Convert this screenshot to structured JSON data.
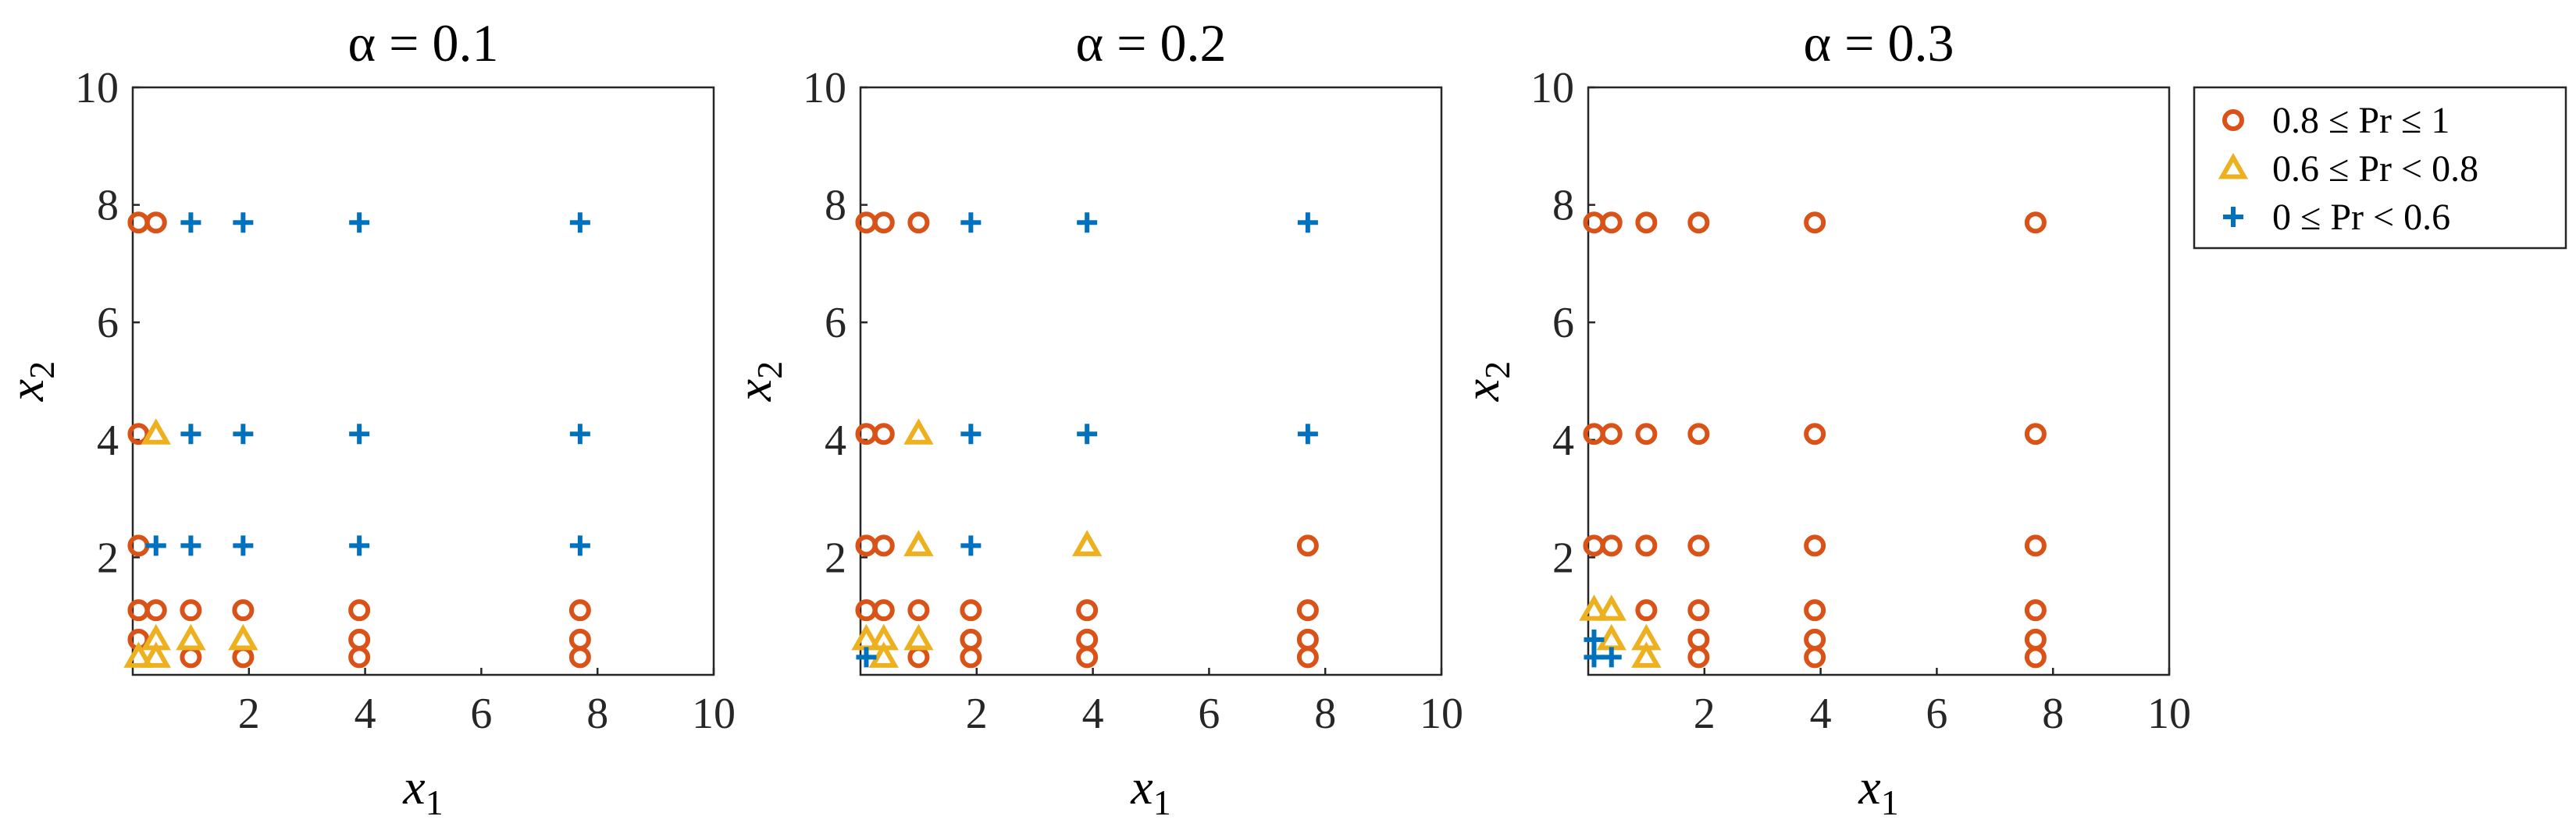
{
  "colors": {
    "high": "#D95319",
    "mid": "#EDB120",
    "low": "#0072BD",
    "axis": "#262626"
  },
  "legend": [
    {
      "key": "high",
      "marker": "circle",
      "label": "0.8 ≤ Pr ≤ 1"
    },
    {
      "key": "mid",
      "marker": "triangle",
      "label": "0.6 ≤ Pr < 0.8"
    },
    {
      "key": "low",
      "marker": "plus",
      "label": "0 ≤ Pr < 0.6"
    }
  ],
  "chart_data": [
    {
      "type": "scatter",
      "title": "α = 0.1",
      "xlabel": "x1",
      "ylabel": "x2",
      "xlim": [
        0,
        10
      ],
      "ylim": [
        0,
        10
      ],
      "xticks": [
        "2",
        "4",
        "6",
        "8",
        "10"
      ],
      "yticks": [
        "2",
        "4",
        "6",
        "8",
        "10"
      ],
      "series": [
        {
          "key": "high",
          "points": [
            [
              0.1,
              7.7
            ],
            [
              0.4,
              7.7
            ],
            [
              0.1,
              4.1
            ],
            [
              0.1,
              2.2
            ],
            [
              0.1,
              1.1
            ],
            [
              0.4,
              1.1
            ],
            [
              1.0,
              1.1
            ],
            [
              1.9,
              1.1
            ],
            [
              3.9,
              1.1
            ],
            [
              7.7,
              1.1
            ],
            [
              0.1,
              0.6
            ],
            [
              1.0,
              0.3
            ],
            [
              1.9,
              0.3
            ],
            [
              3.9,
              0.6
            ],
            [
              3.9,
              0.3
            ],
            [
              7.7,
              0.6
            ],
            [
              7.7,
              0.3
            ]
          ]
        },
        {
          "key": "mid",
          "points": [
            [
              0.4,
              4.1
            ],
            [
              0.1,
              0.3
            ],
            [
              0.4,
              0.6
            ],
            [
              0.4,
              0.3
            ],
            [
              1.0,
              0.6
            ],
            [
              1.9,
              0.6
            ]
          ]
        },
        {
          "key": "low",
          "points": [
            [
              1.0,
              7.7
            ],
            [
              1.9,
              7.7
            ],
            [
              3.9,
              7.7
            ],
            [
              7.7,
              7.7
            ],
            [
              1.0,
              4.1
            ],
            [
              1.9,
              4.1
            ],
            [
              3.9,
              4.1
            ],
            [
              7.7,
              4.1
            ],
            [
              0.4,
              2.2
            ],
            [
              1.0,
              2.2
            ],
            [
              1.9,
              2.2
            ],
            [
              3.9,
              2.2
            ],
            [
              7.7,
              2.2
            ]
          ]
        }
      ]
    },
    {
      "type": "scatter",
      "title": "α = 0.2",
      "xlabel": "x1",
      "ylabel": "x2",
      "xlim": [
        0,
        10
      ],
      "ylim": [
        0,
        10
      ],
      "xticks": [
        "2",
        "4",
        "6",
        "8",
        "10"
      ],
      "yticks": [
        "2",
        "4",
        "6",
        "8",
        "10"
      ],
      "series": [
        {
          "key": "high",
          "points": [
            [
              0.1,
              7.7
            ],
            [
              0.4,
              7.7
            ],
            [
              1.0,
              7.7
            ],
            [
              0.1,
              4.1
            ],
            [
              0.4,
              4.1
            ],
            [
              0.1,
              2.2
            ],
            [
              0.4,
              2.2
            ],
            [
              7.7,
              2.2
            ],
            [
              0.1,
              1.1
            ],
            [
              0.4,
              1.1
            ],
            [
              1.0,
              1.1
            ],
            [
              1.9,
              1.1
            ],
            [
              3.9,
              1.1
            ],
            [
              7.7,
              1.1
            ],
            [
              1.0,
              0.3
            ],
            [
              1.9,
              0.6
            ],
            [
              1.9,
              0.3
            ],
            [
              3.9,
              0.6
            ],
            [
              3.9,
              0.3
            ],
            [
              7.7,
              0.6
            ],
            [
              7.7,
              0.3
            ]
          ]
        },
        {
          "key": "mid",
          "points": [
            [
              1.0,
              4.1
            ],
            [
              1.0,
              2.2
            ],
            [
              3.9,
              2.2
            ],
            [
              0.1,
              0.6
            ],
            [
              0.4,
              0.6
            ],
            [
              0.4,
              0.3
            ],
            [
              1.0,
              0.6
            ]
          ]
        },
        {
          "key": "low",
          "points": [
            [
              1.9,
              7.7
            ],
            [
              3.9,
              7.7
            ],
            [
              7.7,
              7.7
            ],
            [
              1.9,
              4.1
            ],
            [
              3.9,
              4.1
            ],
            [
              7.7,
              4.1
            ],
            [
              1.9,
              2.2
            ],
            [
              0.1,
              0.3
            ]
          ]
        }
      ]
    },
    {
      "type": "scatter",
      "title": "α = 0.3",
      "xlabel": "x1",
      "ylabel": "x2",
      "xlim": [
        0,
        10
      ],
      "ylim": [
        0,
        10
      ],
      "xticks": [
        "2",
        "4",
        "6",
        "8",
        "10"
      ],
      "yticks": [
        "2",
        "4",
        "6",
        "8",
        "10"
      ],
      "series": [
        {
          "key": "high",
          "points": [
            [
              0.1,
              7.7
            ],
            [
              0.4,
              7.7
            ],
            [
              1.0,
              7.7
            ],
            [
              1.9,
              7.7
            ],
            [
              3.9,
              7.7
            ],
            [
              7.7,
              7.7
            ],
            [
              0.1,
              4.1
            ],
            [
              0.4,
              4.1
            ],
            [
              1.0,
              4.1
            ],
            [
              1.9,
              4.1
            ],
            [
              3.9,
              4.1
            ],
            [
              7.7,
              4.1
            ],
            [
              0.1,
              2.2
            ],
            [
              0.4,
              2.2
            ],
            [
              1.0,
              2.2
            ],
            [
              1.9,
              2.2
            ],
            [
              3.9,
              2.2
            ],
            [
              7.7,
              2.2
            ],
            [
              1.0,
              1.1
            ],
            [
              1.9,
              1.1
            ],
            [
              3.9,
              1.1
            ],
            [
              7.7,
              1.1
            ],
            [
              1.9,
              0.6
            ],
            [
              1.9,
              0.3
            ],
            [
              3.9,
              0.6
            ],
            [
              3.9,
              0.3
            ],
            [
              7.7,
              0.6
            ],
            [
              7.7,
              0.3
            ]
          ]
        },
        {
          "key": "mid",
          "points": [
            [
              0.1,
              1.1
            ],
            [
              0.4,
              1.1
            ],
            [
              0.4,
              0.6
            ],
            [
              1.0,
              0.6
            ],
            [
              1.0,
              0.3
            ]
          ]
        },
        {
          "key": "low",
          "points": [
            [
              0.1,
              0.6
            ],
            [
              0.1,
              0.3
            ],
            [
              0.4,
              0.3
            ]
          ]
        }
      ]
    }
  ]
}
